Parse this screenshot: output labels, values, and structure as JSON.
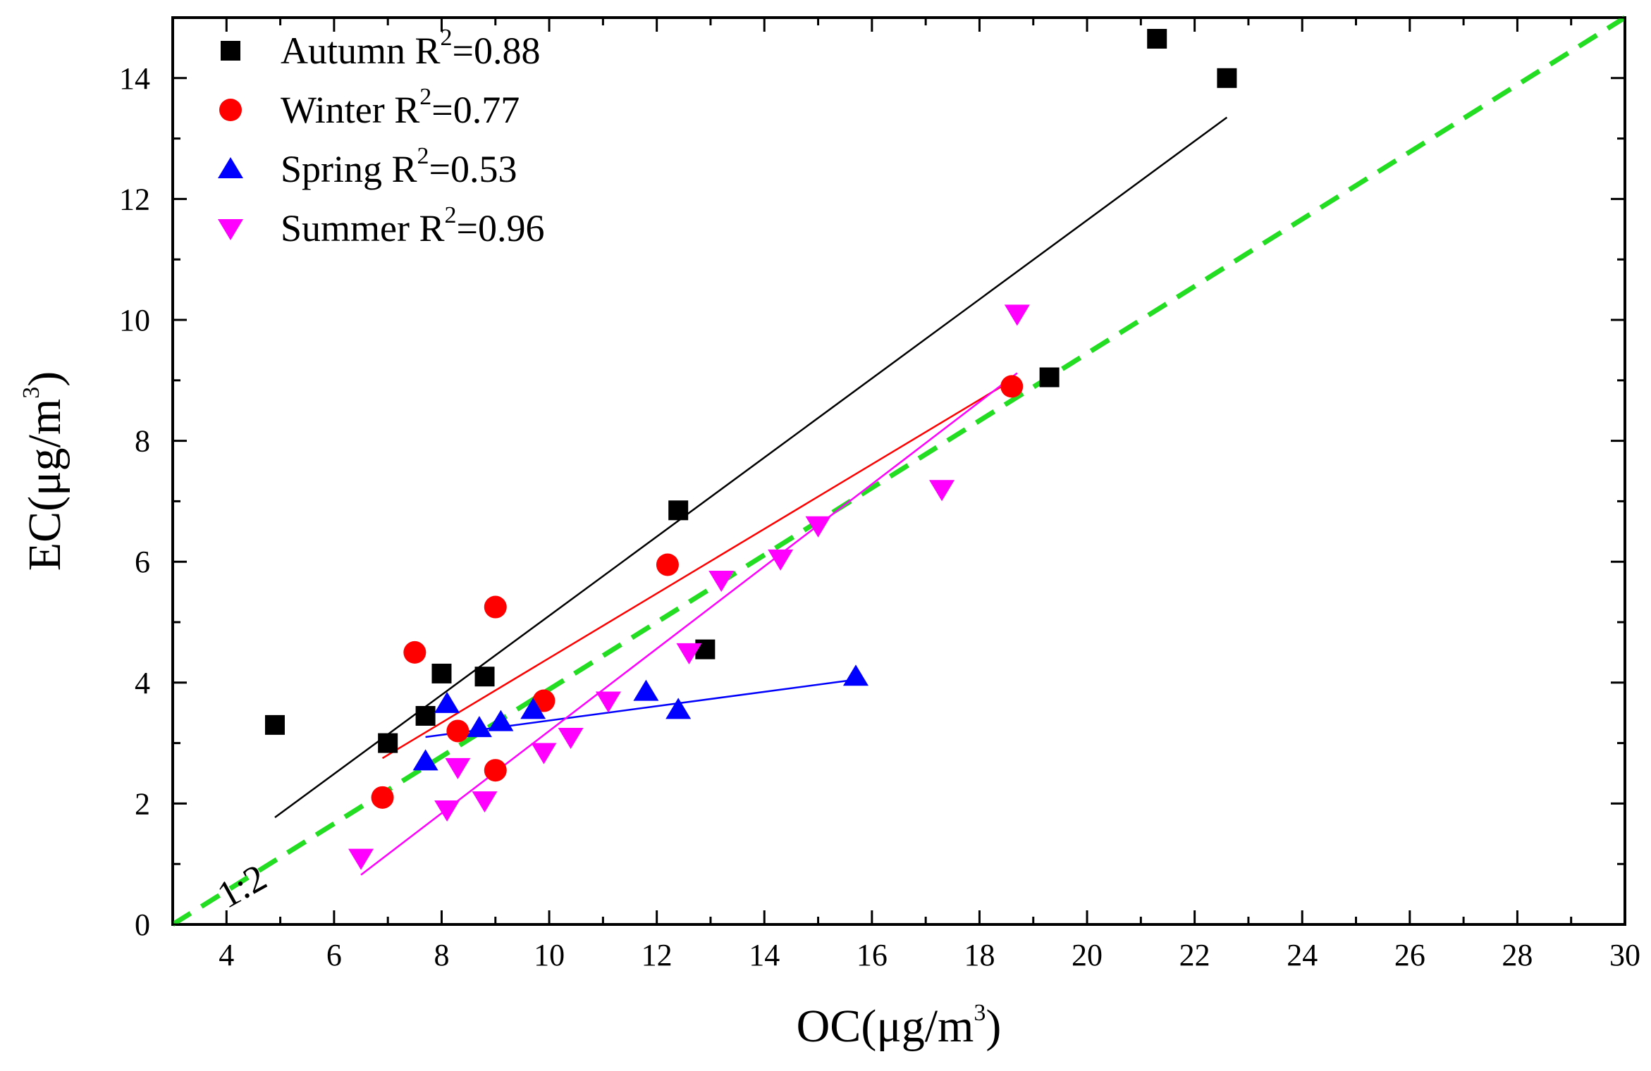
{
  "chart_data": {
    "type": "scatter",
    "title": "",
    "xlabel": {
      "prefix": "OC(",
      "unit": "μg/m",
      "sup": "3",
      "suffix": ")"
    },
    "ylabel": {
      "prefix": "EC(",
      "unit": "μg/m",
      "sup": "3",
      "suffix": ")"
    },
    "xlim": [
      3,
      30
    ],
    "ylim": [
      0,
      15
    ],
    "xticks": [
      4,
      6,
      8,
      10,
      12,
      14,
      16,
      18,
      20,
      22,
      24,
      26,
      28,
      30
    ],
    "yticks": [
      0,
      2,
      4,
      6,
      8,
      10,
      12,
      14
    ],
    "reference_line": {
      "label": "1:2",
      "x": [
        3,
        30
      ],
      "y": [
        0,
        15
      ],
      "color": "#22dd22"
    },
    "series": [
      {
        "name": "Autumn",
        "r2_prefix": "R",
        "r2_sup": "2",
        "r2_value": "=0.88",
        "color": "#000000",
        "marker": "square",
        "x": [
          4.9,
          7.0,
          7.7,
          8.0,
          8.8,
          12.4,
          12.9,
          19.3,
          21.3,
          22.6
        ],
        "y": [
          3.3,
          3.0,
          3.45,
          4.15,
          4.1,
          6.85,
          4.55,
          9.05,
          14.65,
          14.0
        ],
        "fit": {
          "x": [
            4.9,
            22.6
          ],
          "y": [
            1.77,
            13.35
          ]
        }
      },
      {
        "name": "Winter",
        "r2_prefix": "R",
        "r2_sup": "2",
        "r2_value": "=0.77",
        "color": "#ff0000",
        "marker": "circle",
        "x": [
          6.9,
          7.5,
          8.3,
          9.0,
          9.0,
          9.9,
          12.2,
          18.6
        ],
        "y": [
          2.1,
          4.5,
          3.2,
          5.25,
          2.55,
          3.7,
          5.95,
          8.9
        ],
        "fit": {
          "x": [
            6.9,
            18.6
          ],
          "y": [
            2.75,
            9.0
          ]
        }
      },
      {
        "name": "Spring",
        "r2_prefix": "R",
        "r2_sup": "2",
        "r2_value": "=0.53",
        "color": "#0000ff",
        "marker": "triangle-up",
        "x": [
          7.7,
          8.1,
          8.7,
          9.1,
          9.7,
          11.8,
          12.4,
          15.7
        ],
        "y": [
          2.7,
          3.65,
          3.25,
          3.35,
          3.55,
          3.85,
          3.55,
          4.1
        ],
        "fit": {
          "x": [
            7.7,
            15.7
          ],
          "y": [
            3.1,
            4.05
          ]
        }
      },
      {
        "name": "Summer",
        "r2_prefix": "R",
        "r2_sup": "2",
        "r2_value": "=0.96",
        "color": "#ff00ff",
        "marker": "triangle-down",
        "x": [
          6.5,
          8.1,
          8.3,
          8.8,
          9.9,
          10.4,
          11.1,
          12.6,
          13.2,
          14.3,
          15.0,
          17.3,
          18.7
        ],
        "y": [
          1.1,
          1.9,
          2.6,
          2.05,
          2.85,
          3.1,
          3.7,
          4.5,
          5.7,
          6.05,
          6.6,
          7.2,
          10.1
        ],
        "fit": {
          "x": [
            6.5,
            18.7
          ],
          "y": [
            0.82,
            9.12
          ]
        }
      }
    ]
  }
}
